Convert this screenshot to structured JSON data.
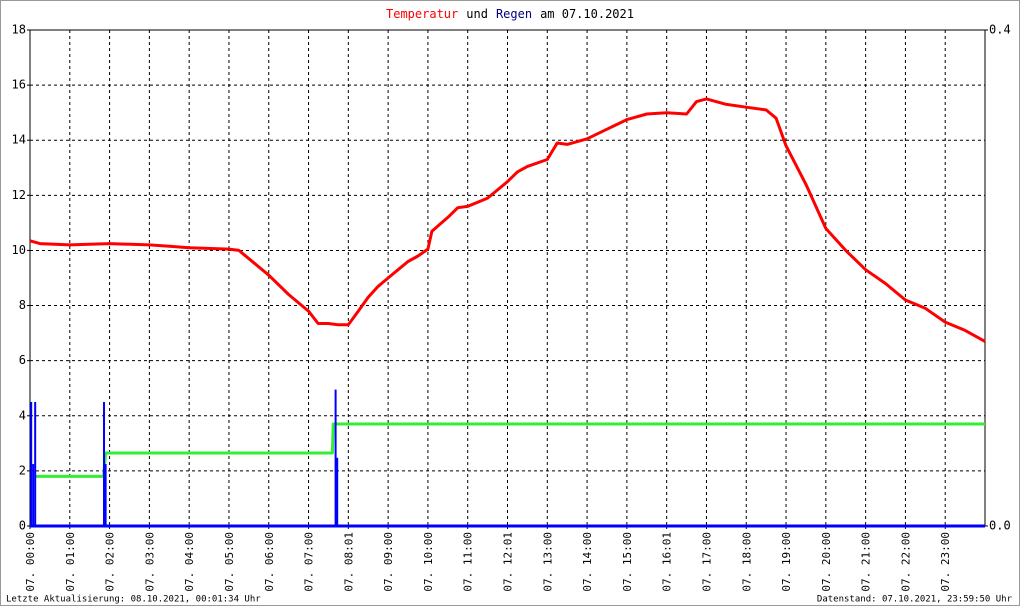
{
  "chart_data": {
    "type": "line",
    "title_parts": [
      {
        "text": "Temperatur",
        "color": "#ff0000"
      },
      {
        "text": "und",
        "color": "#000000"
      },
      {
        "text": "Regen",
        "color": "#000080"
      },
      {
        "text": "am 07.10.2021",
        "color": "#000000"
      }
    ],
    "xlim": [
      0,
      24
    ],
    "xticks": [
      {
        "value": 0,
        "label": "07. 00:00"
      },
      {
        "value": 1,
        "label": "07. 01:00"
      },
      {
        "value": 2,
        "label": "07. 02:00"
      },
      {
        "value": 3,
        "label": "07. 03:00"
      },
      {
        "value": 4,
        "label": "07. 04:00"
      },
      {
        "value": 5,
        "label": "07. 05:00"
      },
      {
        "value": 6,
        "label": "07. 06:00"
      },
      {
        "value": 7,
        "label": "07. 07:00"
      },
      {
        "value": 8,
        "label": "07. 08:01"
      },
      {
        "value": 9,
        "label": "07. 09:00"
      },
      {
        "value": 10,
        "label": "07. 10:00"
      },
      {
        "value": 11,
        "label": "07. 11:00"
      },
      {
        "value": 12,
        "label": "07. 12:01"
      },
      {
        "value": 13,
        "label": "07. 13:00"
      },
      {
        "value": 14,
        "label": "07. 14:00"
      },
      {
        "value": 15,
        "label": "07. 15:00"
      },
      {
        "value": 16,
        "label": "07. 16:01"
      },
      {
        "value": 17,
        "label": "07. 17:00"
      },
      {
        "value": 18,
        "label": "07. 18:00"
      },
      {
        "value": 19,
        "label": "07. 19:00"
      },
      {
        "value": 20,
        "label": "07. 20:00"
      },
      {
        "value": 21,
        "label": "07. 21:00"
      },
      {
        "value": 22,
        "label": "07. 22:00"
      },
      {
        "value": 23,
        "label": "07. 23:00"
      }
    ],
    "ylim": [
      0,
      18
    ],
    "yticks": [
      0,
      2,
      4,
      6,
      8,
      10,
      12,
      14,
      16,
      18
    ],
    "y2lim": [
      0,
      0.4
    ],
    "y2ticks": [
      {
        "value": 0,
        "label": "0.0"
      },
      0.4
    ],
    "grid": true,
    "series": [
      {
        "color": "#ff0000",
        "kind": "line",
        "x": [
          0,
          0.25,
          1,
          2,
          3,
          3.5,
          4,
          5,
          5.25,
          5.5,
          6,
          6.5,
          7,
          7.24,
          7.5,
          7.75,
          8,
          8.25,
          8.5,
          8.75,
          9,
          9.25,
          9.5,
          9.75,
          10,
          10.1,
          10.5,
          10.75,
          11,
          11.5,
          12,
          12.25,
          12.5,
          13,
          13.25,
          13.5,
          14,
          14.5,
          15,
          15.5,
          16,
          16.5,
          16.75,
          17,
          17.5,
          18,
          18.5,
          18.75,
          19,
          19.5,
          20,
          20.5,
          21,
          21.5,
          22,
          22.5,
          23,
          23.5,
          24
        ],
        "values": [
          10.35,
          10.25,
          10.2,
          10.25,
          10.2,
          10.15,
          10.1,
          10.05,
          10.0,
          9.7,
          9.1,
          8.4,
          7.8,
          7.35,
          7.35,
          7.3,
          7.3,
          7.8,
          8.3,
          8.7,
          9.0,
          9.3,
          9.6,
          9.8,
          10.05,
          10.7,
          11.2,
          11.55,
          11.6,
          11.9,
          12.5,
          12.85,
          13.05,
          13.3,
          13.9,
          13.85,
          14.05,
          14.4,
          14.75,
          14.95,
          15.0,
          14.95,
          15.4,
          15.5,
          15.3,
          15.2,
          15.1,
          14.8,
          13.8,
          12.4,
          10.8,
          10.0,
          9.3,
          8.8,
          8.2,
          7.9,
          7.4,
          7.1,
          6.7
        ]
      },
      {
        "color": "#33ee33",
        "kind": "line",
        "x": [
          0.15,
          1.85,
          1.9,
          7.6,
          7.62,
          24
        ],
        "values": [
          1.8,
          1.8,
          2.65,
          2.65,
          3.7,
          3.7
        ]
      },
      {
        "color": "#0000ff",
        "kind": "bar",
        "axis": "y2",
        "x": [
          0.03,
          0.08,
          0.13,
          1.86,
          1.9,
          7.68,
          7.72
        ],
        "values": [
          0.1,
          0.05,
          0.1,
          0.1,
          0.05,
          0.11,
          0.055
        ]
      }
    ],
    "footer_left": "Letzte Aktualisierung: 08.10.2021, 00:01:34 Uhr",
    "footer_right": "Datenstand: 07.10.2021, 23:59:50 Uhr"
  }
}
